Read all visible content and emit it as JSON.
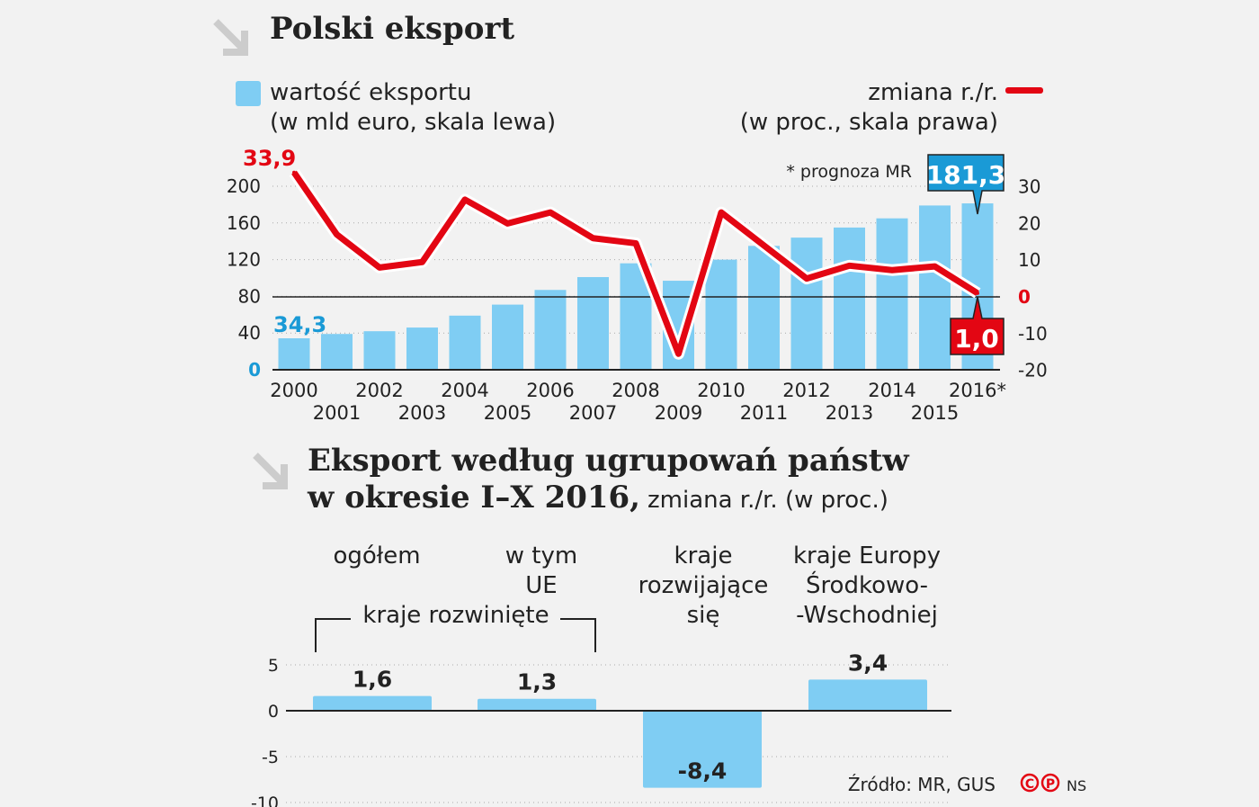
{
  "chart_data": [
    {
      "type": "bar+line",
      "title": "Polski eksport",
      "legend_left": {
        "line1": "wartość eksportu",
        "line2": "(w mld euro, skala lewa)"
      },
      "legend_right": {
        "line1": "zmiana r./r.",
        "line2": "(w proc., skala prawa)"
      },
      "note": "* prognoza MR",
      "categories": [
        "2000",
        "2001",
        "2002",
        "2003",
        "2004",
        "2005",
        "2006",
        "2007",
        "2008",
        "2009",
        "2010",
        "2011",
        "2012",
        "2013",
        "2014",
        "2015",
        "2016*"
      ],
      "series": [
        {
          "name": "wartość eksportu",
          "type": "bar",
          "axis": "left",
          "values": [
            34.3,
            39,
            42,
            46,
            59,
            71,
            87,
            101,
            116,
            97,
            120,
            135,
            144,
            155,
            165,
            179,
            181.3
          ]
        },
        {
          "name": "zmiana r./r.",
          "type": "line",
          "axis": "right",
          "values": [
            33.9,
            17,
            8,
            9.5,
            26.5,
            20,
            23,
            16,
            14.6,
            -15.5,
            23,
            14,
            5,
            8.5,
            7.3,
            8.3,
            1.0
          ]
        }
      ],
      "labels": {
        "first_bar": "34,3",
        "last_bar": "181,3",
        "first_line": "33,9",
        "last_line": "1,0"
      },
      "ylim_left": [
        0,
        200
      ],
      "yticks_left": [
        "0",
        "40",
        "80",
        "120",
        "160",
        "200"
      ],
      "ylim_right": [
        -20,
        30
      ],
      "yticks_right": [
        "-20",
        "-10",
        "0",
        "10",
        "20",
        "30"
      ],
      "colors": {
        "bar": "#7fcdf3",
        "line": "#e30613",
        "accent_blue": "#1a9ad6"
      }
    },
    {
      "type": "bar",
      "title_line1": "Eksport według ugrupowań państw",
      "title_line2": "w okresie I–X 2016,",
      "subtitle": "zmiana r./r. (w proc.)",
      "categories": [
        [
          "ogółem"
        ],
        [
          "w tym",
          "UE"
        ],
        [
          "kraje",
          "rozwijające",
          "się"
        ],
        [
          "kraje Europy",
          "Środkowo-",
          "-Wschodniej"
        ]
      ],
      "group_label": "kraje rozwinięte",
      "values": [
        1.6,
        1.3,
        -8.4,
        3.4
      ],
      "value_labels": [
        "1,6",
        "1,3",
        "-8,4",
        "3,4"
      ],
      "ylim": [
        -10,
        5
      ],
      "yticks": [
        "-10",
        "-5",
        "0",
        "5"
      ]
    }
  ],
  "footer": {
    "source": "Źródło: MR, GUS",
    "author": "NS"
  }
}
